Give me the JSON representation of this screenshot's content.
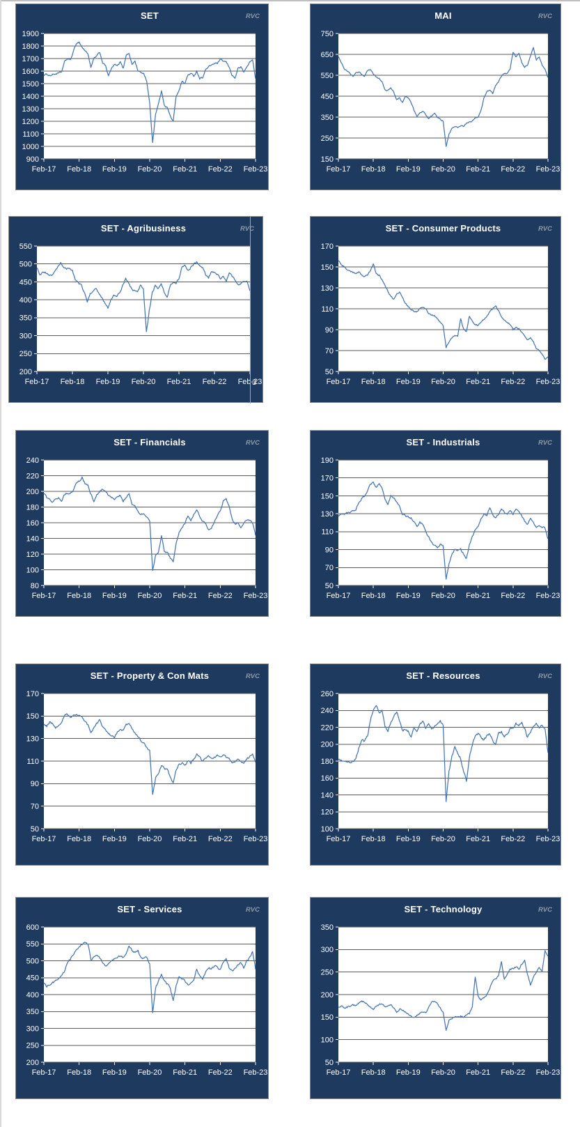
{
  "page": {
    "background": "#ffffff"
  },
  "colors": {
    "panel_bg": "#1E3A5F",
    "panel_border": "#8C8C8C",
    "plot_bg": "#FFFFFF",
    "gridline": "#595959",
    "series_line": "#4575B4",
    "title_text": "#FFFFFF",
    "axis_text": "#FFFFFF",
    "watermark_text": "#8E99A6",
    "artifact_line": "#9AA7B8"
  },
  "chart_data": [
    {
      "id": "set",
      "type": "line",
      "title": "SET",
      "watermark": "RVC",
      "legend": "none",
      "grid": "on",
      "frequency": "monthly",
      "x_tick_labels": [
        "Feb-17",
        "Feb-18",
        "Feb-19",
        "Feb-20",
        "Feb-21",
        "Feb-22",
        "Feb-23"
      ],
      "ylim": [
        900,
        1900
      ],
      "y_step": 100,
      "y_tick_labels": [
        1900,
        1800,
        1700,
        1600,
        1500,
        1400,
        1300,
        1200,
        1100,
        1000,
        900
      ],
      "jitter": 0.01,
      "values": [
        1565,
        1575,
        1565,
        1572,
        1578,
        1582,
        1592,
        1672,
        1700,
        1688,
        1752,
        1820,
        1832,
        1790,
        1762,
        1740,
        1625,
        1700,
        1720,
        1750,
        1668,
        1640,
        1563,
        1620,
        1652,
        1640,
        1672,
        1620,
        1730,
        1740,
        1652,
        1680,
        1600,
        1590,
        1580,
        1520,
        1340,
        1030,
        1260,
        1340,
        1440,
        1330,
        1310,
        1240,
        1200,
        1400,
        1450,
        1520,
        1500,
        1570,
        1580,
        1560,
        1600,
        1542,
        1550,
        1610,
        1632,
        1650,
        1660,
        1662,
        1690,
        1680,
        1672,
        1632,
        1570,
        1542,
        1620,
        1632,
        1592,
        1632,
        1670,
        1690,
        1540
      ]
    },
    {
      "id": "mai",
      "type": "line",
      "title": "MAI",
      "watermark": "RVC",
      "legend": "none",
      "grid": "on",
      "frequency": "monthly",
      "x_tick_labels": [
        "Feb-17",
        "Feb-18",
        "Feb-19",
        "Feb-20",
        "Feb-21",
        "Feb-22",
        "Feb-23"
      ],
      "ylim": [
        150,
        750
      ],
      "y_step": 100,
      "y_tick_labels": [
        750,
        650,
        550,
        450,
        350,
        250,
        150
      ],
      "jitter": 0.008,
      "values": [
        640,
        612,
        582,
        570,
        560,
        546,
        560,
        566,
        556,
        546,
        570,
        576,
        556,
        540,
        534,
        520,
        482,
        476,
        490,
        470,
        432,
        440,
        420,
        450,
        440,
        420,
        382,
        356,
        370,
        380,
        360,
        342,
        356,
        370,
        346,
        340,
        330,
        210,
        268,
        294,
        306,
        300,
        310,
        306,
        320,
        326,
        330,
        346,
        352,
        382,
        440,
        470,
        480,
        462,
        500,
        520,
        546,
        556,
        560,
        580,
        660,
        640,
        658,
        612,
        590,
        600,
        640,
        682,
        622,
        640,
        600,
        580,
        540
      ]
    },
    {
      "id": "set-agribusiness",
      "type": "line",
      "title": "SET - Agribusiness",
      "watermark": "RVC",
      "legend": "none",
      "grid": "on",
      "frequency": "monthly",
      "x_tick_labels": [
        "Feb-17",
        "Feb-18",
        "Feb-19",
        "Feb-20",
        "Feb-21",
        "Feb-22",
        "Feb-23"
      ],
      "ylim": [
        200,
        550
      ],
      "y_step": 50,
      "y_tick_labels": [
        550,
        500,
        450,
        400,
        350,
        300,
        250,
        200
      ],
      "jitter": 0.012,
      "artifact_text": "3",
      "values": [
        490,
        470,
        480,
        476,
        470,
        466,
        480,
        490,
        502,
        490,
        486,
        490,
        482,
        456,
        446,
        440,
        420,
        394,
        416,
        426,
        430,
        416,
        406,
        390,
        378,
        400,
        415,
        410,
        420,
        440,
        462,
        445,
        430,
        425,
        420,
        440,
        430,
        308,
        370,
        420,
        440,
        430,
        445,
        420,
        405,
        440,
        450,
        445,
        460,
        490,
        496,
        480,
        490,
        500,
        506,
        498,
        490,
        470,
        460,
        480,
        476,
        470,
        460,
        466,
        450,
        476,
        466,
        456,
        440,
        446,
        450,
        452,
        425
      ]
    },
    {
      "id": "set-consumer-products",
      "type": "line",
      "title": "SET - Consumer Products",
      "watermark": "RVC",
      "legend": "none",
      "grid": "on",
      "frequency": "monthly",
      "x_tick_labels": [
        "Feb-17",
        "Feb-18",
        "Feb-19",
        "Feb-20",
        "Feb-21",
        "Feb-22",
        "Feb-23"
      ],
      "ylim": [
        50,
        170
      ],
      "y_step": 20,
      "y_tick_labels": [
        170,
        150,
        130,
        110,
        90,
        70,
        50
      ],
      "jitter": 0.01,
      "values": [
        156,
        152,
        150,
        147,
        146,
        145,
        143,
        145,
        142,
        141,
        142,
        146,
        153,
        143,
        142,
        138,
        132,
        127,
        122,
        119,
        124,
        126,
        121,
        115,
        112,
        110,
        108,
        107,
        111,
        112,
        110,
        106,
        104,
        103,
        100,
        97,
        93,
        73,
        79,
        82,
        85,
        84,
        100,
        90,
        88,
        103,
        98,
        95,
        94,
        98,
        100,
        103,
        107,
        110,
        113,
        108,
        103,
        99,
        97,
        95,
        90,
        92,
        91,
        88,
        84,
        80,
        82,
        78,
        72,
        70,
        66,
        62,
        64
      ]
    },
    {
      "id": "set-financials",
      "type": "line",
      "title": "SET - Financials",
      "watermark": "RVC",
      "legend": "none",
      "grid": "on",
      "frequency": "monthly",
      "x_tick_labels": [
        "Feb-17",
        "Feb-18",
        "Feb-19",
        "Feb-20",
        "Feb-21",
        "Feb-22",
        "Feb-23"
      ],
      "ylim": [
        80,
        240
      ],
      "y_step": 20,
      "y_tick_labels": [
        240,
        220,
        200,
        180,
        160,
        140,
        120,
        100,
        80
      ],
      "jitter": 0.012,
      "values": [
        197,
        192,
        190,
        187,
        190,
        192,
        188,
        196,
        198,
        197,
        202,
        210,
        213,
        218,
        210,
        208,
        196,
        188,
        196,
        200,
        203,
        200,
        195,
        192,
        190,
        192,
        195,
        188,
        192,
        197,
        183,
        180,
        175,
        170,
        172,
        168,
        163,
        100,
        118,
        122,
        143,
        124,
        122,
        115,
        110,
        135,
        148,
        155,
        160,
        168,
        163,
        170,
        178,
        168,
        162,
        158,
        150,
        153,
        160,
        170,
        175,
        188,
        190,
        180,
        165,
        158,
        160,
        155,
        160,
        163,
        162,
        160,
        144
      ]
    },
    {
      "id": "set-industrials",
      "type": "line",
      "title": "SET - Industrials",
      "watermark": "RVC",
      "legend": "none",
      "grid": "on",
      "frequency": "monthly",
      "x_tick_labels": [
        "Feb-17",
        "Feb-18",
        "Feb-19",
        "Feb-20",
        "Feb-21",
        "Feb-22",
        "Feb-23"
      ],
      "ylim": [
        50,
        190
      ],
      "y_step": 20,
      "y_tick_labels": [
        190,
        170,
        150,
        130,
        110,
        90,
        70,
        50
      ],
      "jitter": 0.012,
      "values": [
        128,
        130,
        129,
        131,
        132,
        133,
        135,
        142,
        147,
        150,
        155,
        163,
        165,
        160,
        163,
        158,
        147,
        140,
        150,
        148,
        143,
        138,
        130,
        128,
        127,
        125,
        122,
        115,
        120,
        118,
        110,
        105,
        98,
        95,
        92,
        96,
        94,
        58,
        75,
        85,
        90,
        88,
        90,
        85,
        80,
        95,
        105,
        112,
        115,
        125,
        130,
        128,
        137,
        128,
        125,
        130,
        135,
        132,
        130,
        133,
        130,
        135,
        132,
        128,
        122,
        118,
        125,
        120,
        115,
        117,
        115,
        114,
        102
      ]
    },
    {
      "id": "set-property-con-mats",
      "type": "line",
      "title": "SET - Property & Con Mats",
      "watermark": "RVC",
      "legend": "none",
      "grid": "on",
      "frequency": "monthly",
      "x_tick_labels": [
        "Feb-17",
        "Feb-18",
        "Feb-19",
        "Feb-20",
        "Feb-21",
        "Feb-22",
        "Feb-23"
      ],
      "ylim": [
        50,
        170
      ],
      "y_step": 20,
      "y_tick_labels": [
        170,
        150,
        130,
        110,
        90,
        70,
        50
      ],
      "jitter": 0.012,
      "values": [
        143,
        141,
        145,
        143,
        140,
        142,
        145,
        150,
        152,
        149,
        151,
        152,
        150,
        148,
        145,
        142,
        135,
        140,
        143,
        146,
        140,
        137,
        135,
        133,
        130,
        136,
        138,
        137,
        142,
        144,
        138,
        135,
        132,
        128,
        126,
        122,
        119,
        80,
        95,
        100,
        106,
        104,
        102,
        96,
        90,
        102,
        107,
        108,
        106,
        110,
        108,
        112,
        116,
        113,
        110,
        113,
        115,
        112,
        113,
        115,
        114,
        116,
        113,
        112,
        108,
        109,
        112,
        110,
        108,
        112,
        114,
        117,
        109
      ]
    },
    {
      "id": "set-resources",
      "type": "line",
      "title": "SET - Resources",
      "watermark": "RVC",
      "legend": "none",
      "grid": "on",
      "frequency": "monthly",
      "x_tick_labels": [
        "Feb-17",
        "Feb-18",
        "Feb-19",
        "Feb-20",
        "Feb-21",
        "Feb-22",
        "Feb-23"
      ],
      "ylim": [
        100,
        260
      ],
      "y_step": 20,
      "y_tick_labels": [
        260,
        240,
        220,
        200,
        180,
        160,
        140,
        120,
        100
      ],
      "jitter": 0.014,
      "values": [
        182,
        180,
        181,
        179,
        178,
        180,
        183,
        195,
        205,
        203,
        210,
        228,
        240,
        245,
        238,
        240,
        222,
        215,
        225,
        232,
        238,
        228,
        215,
        218,
        215,
        208,
        220,
        215,
        222,
        228,
        218,
        225,
        218,
        222,
        225,
        228,
        222,
        132,
        168,
        185,
        198,
        188,
        183,
        168,
        157,
        185,
        200,
        210,
        212,
        208,
        205,
        210,
        212,
        205,
        200,
        212,
        215,
        208,
        212,
        218,
        220,
        225,
        222,
        225,
        218,
        208,
        215,
        222,
        225,
        220,
        222,
        218,
        190
      ]
    },
    {
      "id": "set-services",
      "type": "line",
      "title": "SET - Services",
      "watermark": "RVC",
      "legend": "none",
      "grid": "on",
      "frequency": "monthly",
      "x_tick_labels": [
        "Feb-17",
        "Feb-18",
        "Feb-19",
        "Feb-20",
        "Feb-21",
        "Feb-22",
        "Feb-23"
      ],
      "ylim": [
        200,
        600
      ],
      "y_step": 50,
      "y_tick_labels": [
        600,
        550,
        500,
        450,
        400,
        350,
        300,
        250,
        200
      ],
      "jitter": 0.012,
      "values": [
        435,
        425,
        430,
        435,
        440,
        445,
        455,
        470,
        495,
        505,
        520,
        535,
        540,
        548,
        553,
        550,
        505,
        510,
        515,
        510,
        495,
        485,
        490,
        500,
        505,
        510,
        515,
        510,
        525,
        545,
        530,
        525,
        530,
        510,
        505,
        510,
        490,
        345,
        420,
        440,
        460,
        440,
        430,
        420,
        380,
        430,
        450,
        445,
        440,
        430,
        435,
        445,
        475,
        455,
        445,
        465,
        480,
        475,
        485,
        480,
        475,
        495,
        505,
        480,
        470,
        475,
        490,
        495,
        480,
        500,
        510,
        528,
        475
      ]
    },
    {
      "id": "set-technology",
      "type": "line",
      "title": "SET - Technology",
      "watermark": "RVC",
      "legend": "none",
      "grid": "on",
      "frequency": "monthly",
      "x_tick_labels": [
        "Feb-17",
        "Feb-18",
        "Feb-19",
        "Feb-20",
        "Feb-21",
        "Feb-22",
        "Feb-23"
      ],
      "ylim": [
        50,
        350
      ],
      "y_step": 50,
      "y_tick_labels": [
        350,
        300,
        250,
        200,
        150,
        100,
        50
      ],
      "jitter": 0.01,
      "values": [
        172,
        175,
        170,
        172,
        175,
        178,
        175,
        180,
        185,
        183,
        178,
        172,
        168,
        175,
        178,
        180,
        172,
        175,
        178,
        172,
        160,
        168,
        165,
        162,
        158,
        152,
        150,
        155,
        158,
        162,
        160,
        170,
        182,
        185,
        180,
        170,
        162,
        120,
        142,
        148,
        152,
        150,
        152,
        150,
        155,
        158,
        175,
        240,
        195,
        188,
        192,
        200,
        215,
        230,
        235,
        240,
        275,
        235,
        245,
        255,
        258,
        262,
        255,
        268,
        275,
        245,
        222,
        238,
        250,
        262,
        252,
        298,
        285
      ]
    }
  ]
}
